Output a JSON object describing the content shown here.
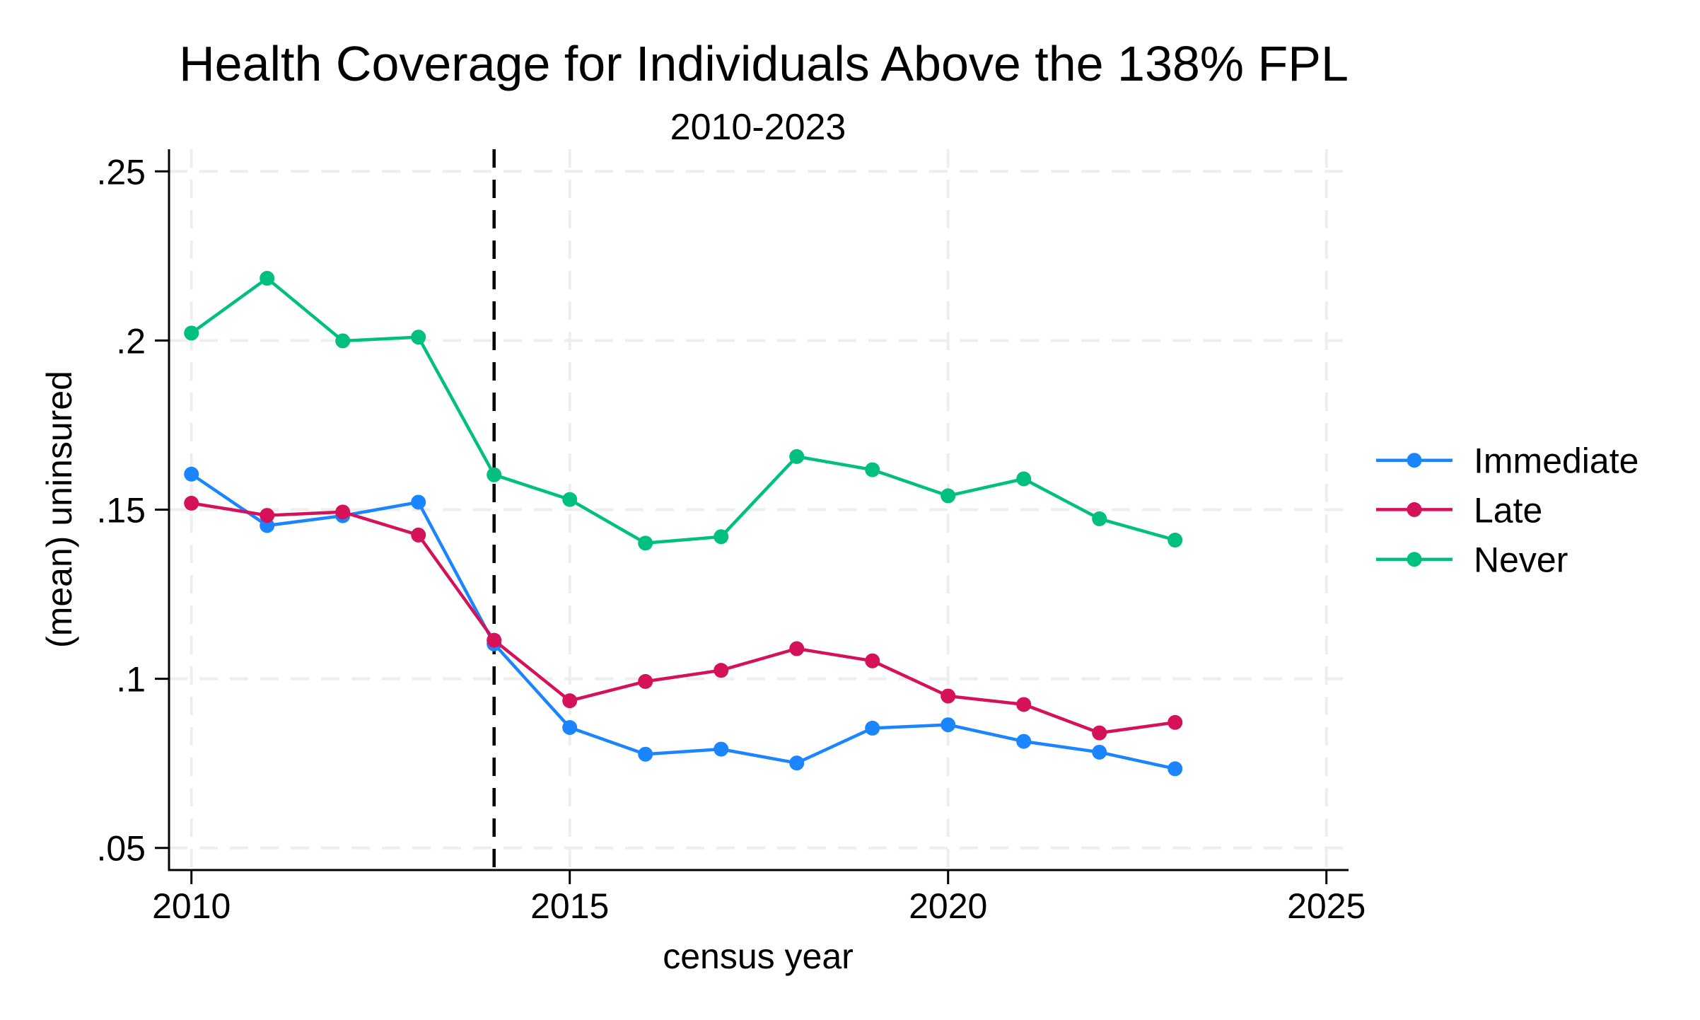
{
  "chart_data": {
    "type": "line",
    "title": "Health Coverage for Individuals Above the 138% FPL",
    "subtitle": "2010-2023",
    "xlabel": "census year",
    "ylabel": "(mean) uninsured",
    "xlim": [
      2010,
      2025
    ],
    "ylim": [
      0.05,
      0.25
    ],
    "x_ticks": [
      2010,
      2015,
      2020,
      2025
    ],
    "x_tick_labels": [
      "2010",
      "2015",
      "2020",
      "2025"
    ],
    "y_ticks": [
      0.05,
      0.1,
      0.15,
      0.2,
      0.25
    ],
    "y_tick_labels": [
      ".05",
      ".1",
      ".15",
      ".2",
      ".25"
    ],
    "grid": true,
    "legend_position": "right",
    "reference_line": {
      "orientation": "vertical",
      "x": 2014,
      "style": "dashed",
      "color": "#000000"
    },
    "x": [
      2010,
      2011,
      2012,
      2013,
      2014,
      2015,
      2016,
      2017,
      2018,
      2019,
      2020,
      2021,
      2022,
      2023
    ],
    "series": [
      {
        "name": "Immediate",
        "color": "#1a85ff",
        "values": [
          0.1605,
          0.1453,
          0.1482,
          0.1522,
          0.1103,
          0.0856,
          0.0777,
          0.0792,
          0.0751,
          0.0854,
          0.0864,
          0.0815,
          0.0783,
          0.0734
        ]
      },
      {
        "name": "Late",
        "color": "#d41159",
        "values": [
          0.1519,
          0.1483,
          0.1493,
          0.1425,
          0.1114,
          0.0935,
          0.0992,
          0.1025,
          0.1089,
          0.1053,
          0.0949,
          0.0924,
          0.084,
          0.0871
        ]
      },
      {
        "name": "Never",
        "color": "#00bf7f",
        "values": [
          0.2022,
          0.2184,
          0.1999,
          0.201,
          0.1603,
          0.153,
          0.1401,
          0.142,
          0.1657,
          0.1618,
          0.1541,
          0.1591,
          0.1473,
          0.141
        ]
      }
    ]
  }
}
